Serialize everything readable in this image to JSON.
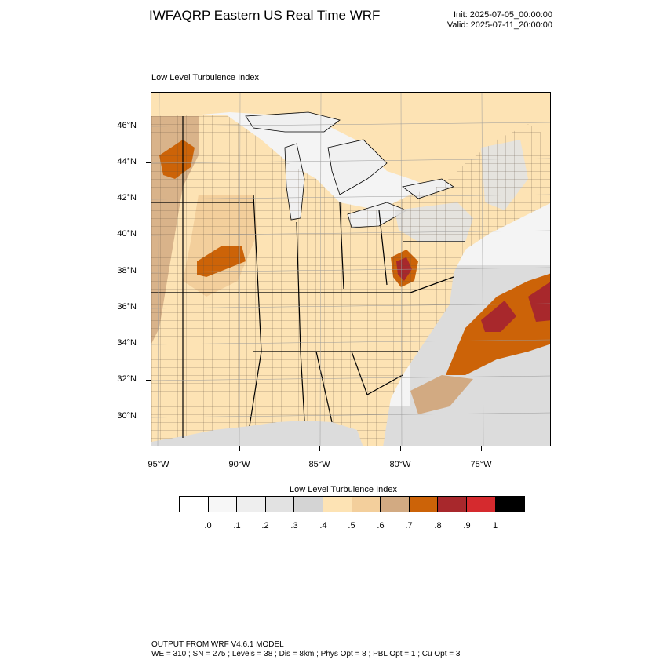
{
  "header": {
    "title": "IWFAQRP Eastern US Real Time WRF",
    "init": "Init: 2025-07-05_00:00:00",
    "valid": "Valid: 2025-07-11_20:00:00"
  },
  "map": {
    "subtitle": "Low Level Turbulence Index",
    "lat_labels": [
      "46°N",
      "44°N",
      "42°N",
      "40°N",
      "38°N",
      "36°N",
      "34°N",
      "32°N",
      "30°N"
    ],
    "lon_labels": [
      "95°W",
      "90°W",
      "85°W",
      "80°W",
      "75°W"
    ],
    "colors": {
      "land_base": "#fde3b4",
      "land_mid": "#f3cf9c",
      "land_tan": "#d2aa82",
      "orange": "#cc6308",
      "dark_red": "#a8282c",
      "water_light": "#f4f4f4",
      "water_grey": "#dcdcdc",
      "lake": "#f0f0f0"
    }
  },
  "legend": {
    "title": "Low Level Turbulence Index",
    "labels": [
      ".0",
      ".1",
      ".2",
      ".3",
      ".4",
      ".5",
      ".6",
      ".7",
      ".8",
      ".9",
      "1"
    ],
    "colors": [
      "#ffffff",
      "#f7f7f7",
      "#eeeeee",
      "#e2e2e2",
      "#d4d4d4",
      "#fde3b4",
      "#f3cf9c",
      "#d2aa82",
      "#cc6308",
      "#a8282c",
      "#d52a2e",
      "#000000"
    ]
  },
  "footer": {
    "line1": "OUTPUT FROM WRF V4.6.1 MODEL",
    "line2": "WE = 310 ; SN = 275 ; Levels = 38 ; Dis = 8km ; Phys Opt = 8 ; PBL Opt = 1 ; Cu Opt = 3"
  }
}
